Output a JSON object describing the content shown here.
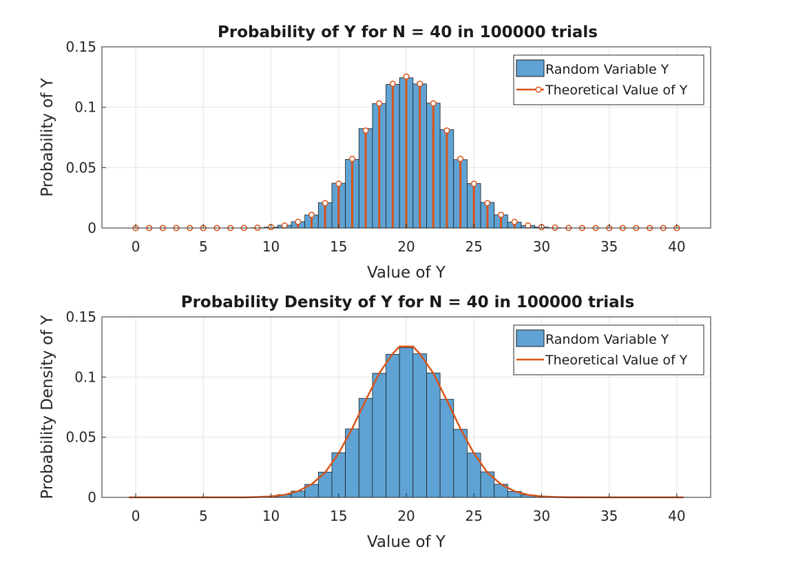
{
  "chart_data": [
    {
      "type": "bar",
      "title": "Probability of Y for N = 40 in 100000 trials",
      "xlabel": "Value of Y",
      "ylabel": "Probability of Y",
      "xlim": [
        -2.5,
        42.5
      ],
      "ylim": [
        0,
        0.15
      ],
      "xticks": [
        "0",
        "5",
        "10",
        "15",
        "20",
        "25",
        "30",
        "35",
        "40"
      ],
      "yticks": [
        "0",
        "0.05",
        "0.1",
        "0.15"
      ],
      "grid": true,
      "legend_position": "top-right",
      "series": [
        {
          "name": "Random Variable Y",
          "style": "histogram",
          "color": "#5fa3d4",
          "x": [
            0,
            1,
            2,
            3,
            4,
            5,
            6,
            7,
            8,
            9,
            10,
            11,
            12,
            13,
            14,
            15,
            16,
            17,
            18,
            19,
            20,
            21,
            22,
            23,
            24,
            25,
            26,
            27,
            28,
            29,
            30,
            31,
            32,
            33,
            34,
            35,
            36,
            37,
            38,
            39,
            40
          ],
          "values": [
            0,
            0,
            0,
            0,
            0,
            0,
            0,
            0,
            0,
            0.0002,
            0.0007,
            0.0023,
            0.0052,
            0.0108,
            0.021,
            0.0371,
            0.0568,
            0.0823,
            0.1031,
            0.1189,
            0.1244,
            0.1193,
            0.1034,
            0.0815,
            0.0566,
            0.0368,
            0.0212,
            0.0109,
            0.0049,
            0.002,
            0.0008,
            0.0002,
            0,
            0,
            0,
            0,
            0,
            0,
            0,
            0,
            0
          ]
        },
        {
          "name": "Theoretical Value of Y",
          "style": "stem",
          "color": "#d95319",
          "x": [
            0,
            1,
            2,
            3,
            4,
            5,
            6,
            7,
            8,
            9,
            10,
            11,
            12,
            13,
            14,
            15,
            16,
            17,
            18,
            19,
            20,
            21,
            22,
            23,
            24,
            25,
            26,
            27,
            28,
            29,
            30,
            31,
            32,
            33,
            34,
            35,
            36,
            37,
            38,
            39,
            40
          ],
          "values": [
            0,
            0,
            0,
            0,
            0,
            0,
            0,
            0,
            0.0001,
            0.0003,
            0.0008,
            0.0021,
            0.0051,
            0.0109,
            0.0206,
            0.0366,
            0.0572,
            0.0807,
            0.1031,
            0.1194,
            0.1254,
            0.1194,
            0.1031,
            0.0807,
            0.0572,
            0.0366,
            0.0206,
            0.0109,
            0.0051,
            0.0021,
            0.0008,
            0.0003,
            0.0001,
            0,
            0,
            0,
            0,
            0,
            0,
            0,
            0
          ]
        }
      ]
    },
    {
      "type": "bar",
      "title": "Probability Density of Y for N = 40 in 100000 trials",
      "xlabel": "Value of Y",
      "ylabel": "Probability Density of Y",
      "xlim": [
        -2.5,
        42.5
      ],
      "ylim": [
        0,
        0.15
      ],
      "xticks": [
        "0",
        "5",
        "10",
        "15",
        "20",
        "25",
        "30",
        "35",
        "40"
      ],
      "yticks": [
        "0",
        "0.05",
        "0.1",
        "0.15"
      ],
      "grid": true,
      "legend_position": "top-right",
      "series": [
        {
          "name": "Random Variable Y",
          "style": "histogram",
          "color": "#5fa3d4",
          "x": [
            9,
            10,
            11,
            12,
            13,
            14,
            15,
            16,
            17,
            18,
            19,
            20,
            21,
            22,
            23,
            24,
            25,
            26,
            27,
            28,
            29,
            30,
            31
          ],
          "values": [
            0.0002,
            0.0007,
            0.0023,
            0.0052,
            0.0108,
            0.021,
            0.0371,
            0.0568,
            0.0823,
            0.1031,
            0.1189,
            0.1244,
            0.1193,
            0.1034,
            0.0815,
            0.0566,
            0.0368,
            0.0212,
            0.0109,
            0.0049,
            0.002,
            0.0008,
            0.0002
          ]
        },
        {
          "name": "Theoretical Value of Y",
          "style": "line",
          "color": "#d95319",
          "x": [
            -0.5,
            4,
            8,
            9,
            10,
            11,
            12,
            13,
            14,
            15,
            16,
            17,
            18,
            19,
            19.5,
            20.5,
            21,
            22,
            23,
            24,
            25,
            26,
            27,
            28,
            29,
            30,
            31,
            32,
            36,
            40.5
          ],
          "values": [
            0,
            0,
            0,
            0.0003,
            0.0008,
            0.0021,
            0.0051,
            0.0109,
            0.0206,
            0.0366,
            0.0572,
            0.0807,
            0.1031,
            0.1194,
            0.1254,
            0.1254,
            0.1194,
            0.1031,
            0.0807,
            0.0572,
            0.0366,
            0.0206,
            0.0109,
            0.0051,
            0.0021,
            0.0008,
            0.0003,
            0.0001,
            0,
            0
          ]
        }
      ]
    }
  ]
}
